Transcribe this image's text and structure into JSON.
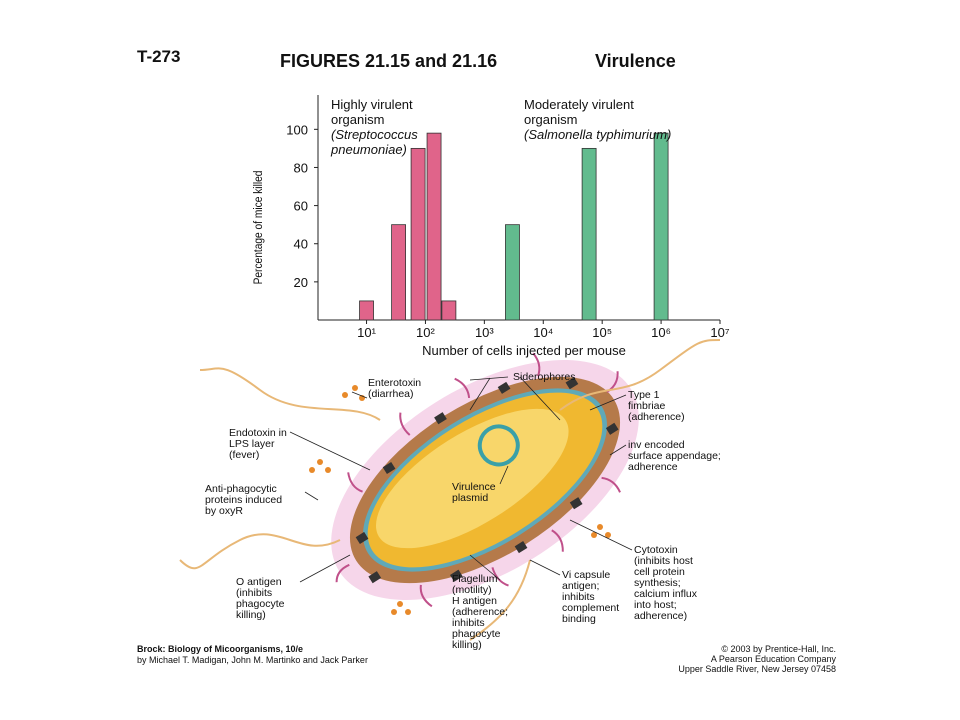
{
  "header": {
    "code": "T-273",
    "title": "FIGURES 21.15 and 21.16",
    "subject": "Virulence"
  },
  "chart_data": {
    "type": "bar",
    "xlabel": "Number of cells injected per mouse",
    "ylabel": "Percentage of mice killed",
    "xscale": "log",
    "xlim": [
      1.5,
      10000000
    ],
    "xticks": [
      {
        "value": 10,
        "label": "10¹"
      },
      {
        "value": 100,
        "label": "10²"
      },
      {
        "value": 1000,
        "label": "10³"
      },
      {
        "value": 10000,
        "label": "10⁴"
      },
      {
        "value": 100000,
        "label": "10⁵"
      },
      {
        "value": 1000000,
        "label": "10⁶"
      },
      {
        "value": 10000000,
        "label": "10⁷"
      }
    ],
    "ylim": [
      0,
      118
    ],
    "yticks": [
      20,
      40,
      60,
      80,
      100
    ],
    "series": [
      {
        "name": "Highly virulent organism",
        "species": "(Streptococcus pneumoniae)",
        "color": "#e0648a",
        "x": [
          10,
          35,
          75,
          140,
          250
        ],
        "values": [
          10,
          50,
          90,
          98,
          10
        ]
      },
      {
        "name": "Moderately virulent organism",
        "species": "(Salmonella typhimurium)",
        "color": "#62bb8e",
        "x": [
          3000,
          60000,
          1000000
        ],
        "values": [
          50,
          90,
          98
        ]
      }
    ]
  },
  "diagram": {
    "labels": [
      {
        "lines": [
          "Enterotoxin",
          "(diarrhea)"
        ]
      },
      {
        "lines": [
          "Siderophores"
        ]
      },
      {
        "lines": [
          "Type 1",
          "fimbriae",
          "(adherence)"
        ]
      },
      {
        "lines": [
          "Endotoxin in",
          "LPS layer",
          "(fever)"
        ]
      },
      {
        "lines": [
          "inv encoded",
          "surface appendage;",
          "adherence"
        ]
      },
      {
        "lines": [
          "Virulence",
          "plasmid"
        ]
      },
      {
        "lines": [
          "Anti-phagocytic",
          "proteins induced",
          "by oxyR"
        ]
      },
      {
        "lines": [
          "Cytotoxin",
          "(inhibits host",
          "cell protein",
          "synthesis;",
          "calcium influx",
          "into host;",
          "adherence)"
        ]
      },
      {
        "lines": [
          "O antigen",
          "(inhibits",
          "phagocyte",
          "killing)"
        ]
      },
      {
        "lines": [
          "Flagellum",
          "(motility)",
          "H antigen",
          "(adherence;",
          "inhibits",
          "phagocyte",
          "killing)"
        ]
      },
      {
        "lines": [
          "Vi capsule",
          "antigen;",
          "inhibits",
          "complement",
          "binding"
        ]
      }
    ]
  },
  "footer": {
    "book": "Brock: Biology of Micoorganisms, 10/e",
    "authors": "by Michael T. Madigan, John M. Martinko and Jack Parker",
    "copyright": [
      "© 2003 by Prentice-Hall, Inc.",
      "A Pearson Education Company",
      "Upper Saddle River, New Jersey 07458"
    ]
  }
}
